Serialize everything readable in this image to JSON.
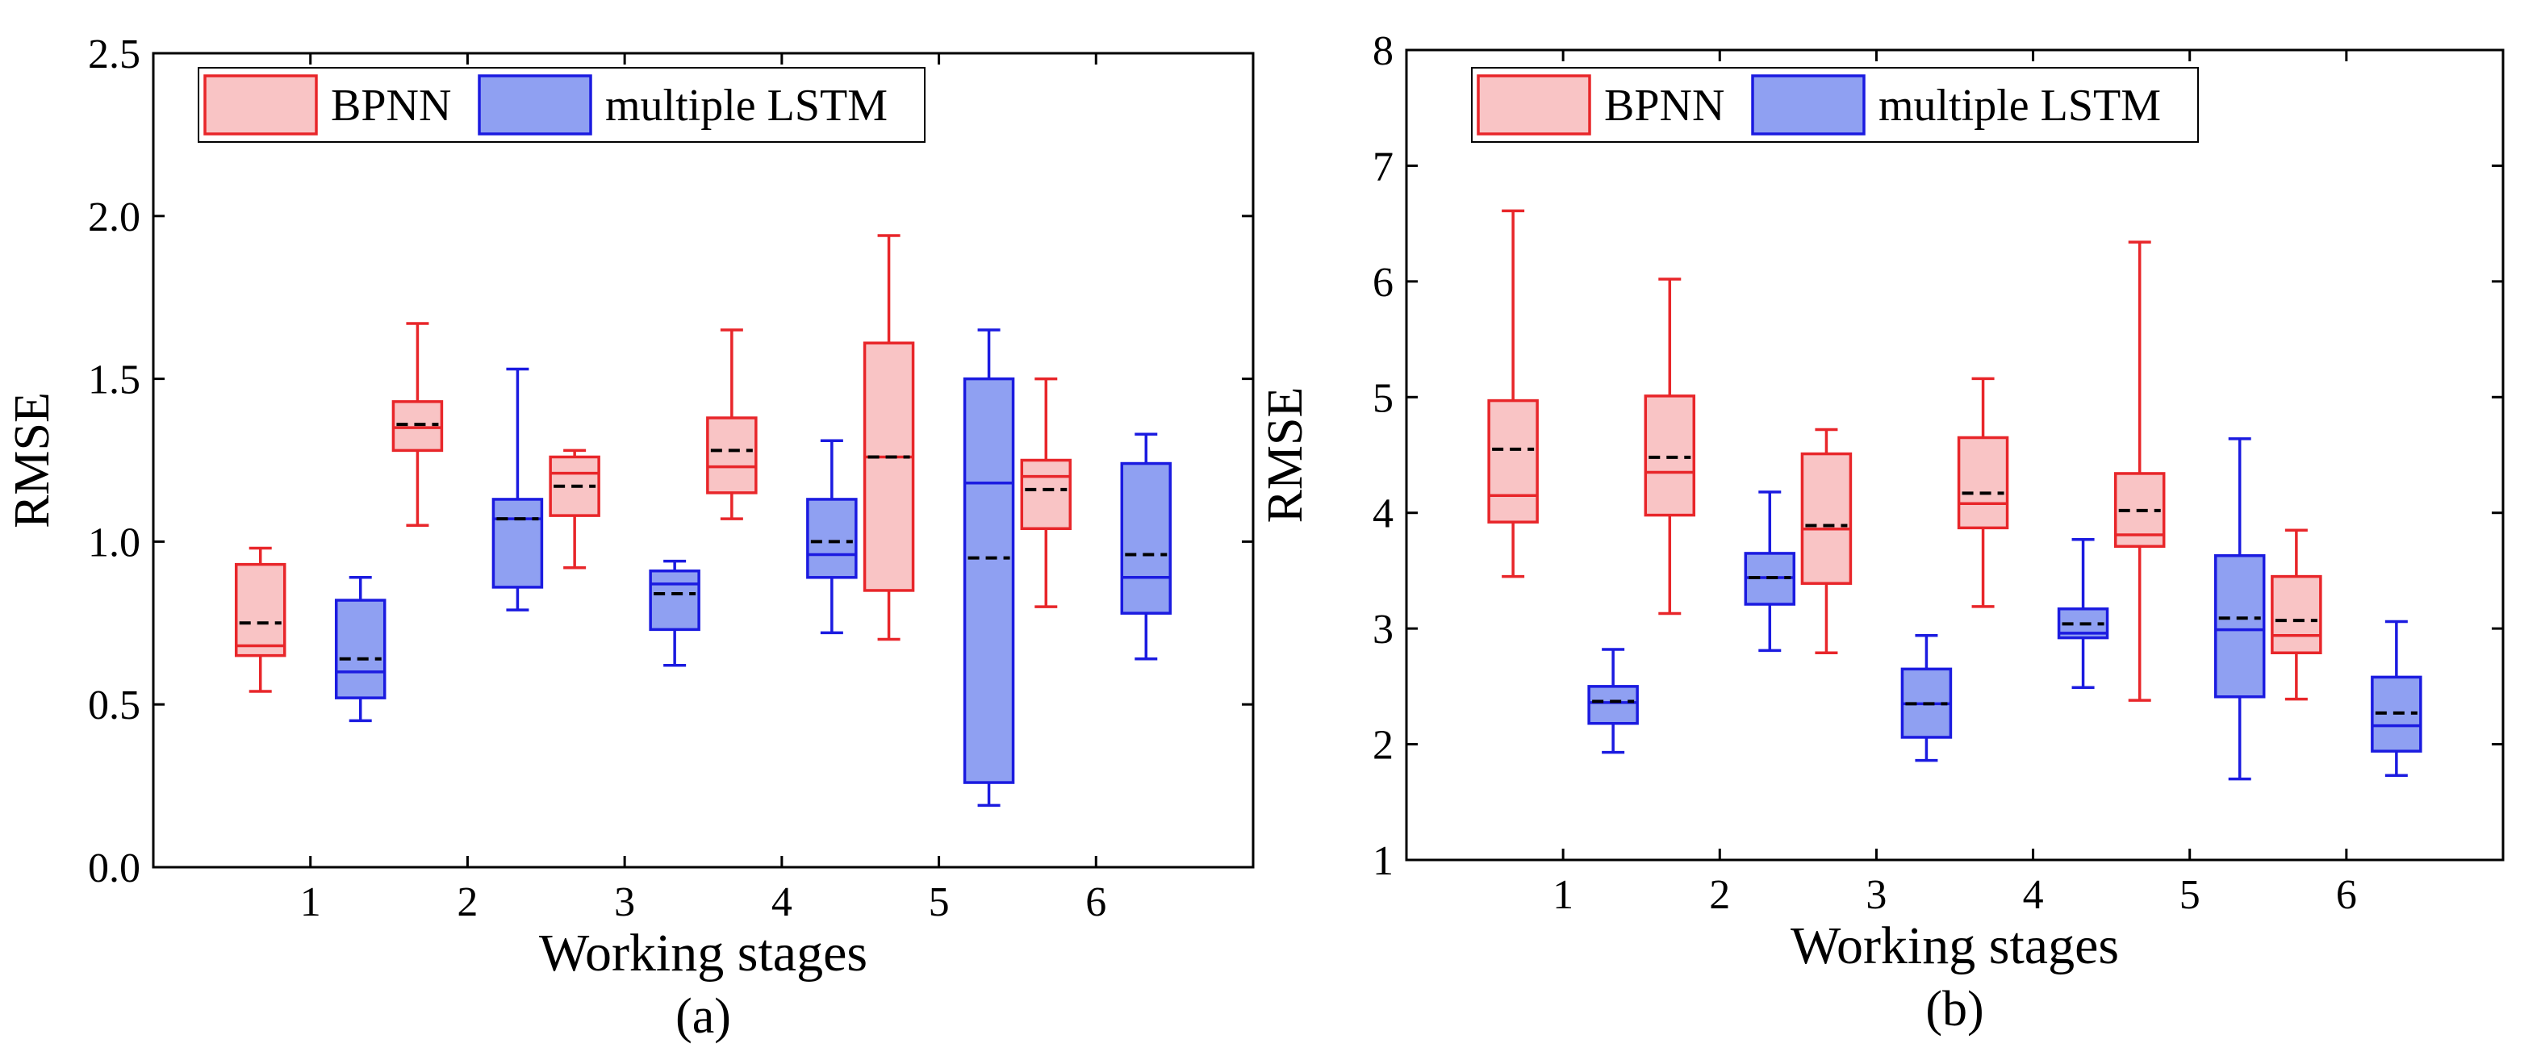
{
  "chart_data": [
    {
      "id": "a",
      "type": "box",
      "caption": "(a)",
      "xlabel": "Working stages",
      "ylabel": "RMSE",
      "categories": [
        "1",
        "2",
        "3",
        "4",
        "5",
        "6"
      ],
      "ylim": [
        0,
        2.5
      ],
      "yticks": [
        "0.0",
        "0.5",
        "1.0",
        "1.5",
        "2.0",
        "2.5"
      ],
      "legend": {
        "position": "top-left",
        "entries": [
          "BPNN",
          "multiple LSTM"
        ]
      },
      "series": [
        {
          "name": "BPNN",
          "color": "#e8262a",
          "fill": "#f9c4c5",
          "boxes": [
            {
              "min": 0.54,
              "q1": 0.65,
              "median": 0.68,
              "mean": 0.75,
              "q3": 0.93,
              "max": 0.98
            },
            {
              "min": 1.05,
              "q1": 1.28,
              "median": 1.35,
              "mean": 1.36,
              "q3": 1.43,
              "max": 1.67
            },
            {
              "min": 0.92,
              "q1": 1.08,
              "median": 1.21,
              "mean": 1.17,
              "q3": 1.26,
              "max": 1.28
            },
            {
              "min": 1.07,
              "q1": 1.15,
              "median": 1.23,
              "mean": 1.28,
              "q3": 1.38,
              "max": 1.65
            },
            {
              "min": 0.7,
              "q1": 0.85,
              "median": 1.26,
              "mean": 1.26,
              "q3": 1.61,
              "max": 1.94
            },
            {
              "min": 0.8,
              "q1": 1.04,
              "median": 1.2,
              "mean": 1.16,
              "q3": 1.25,
              "max": 1.5
            }
          ]
        },
        {
          "name": "multiple LSTM",
          "color": "#1b1be0",
          "fill": "#8fa0f2",
          "boxes": [
            {
              "min": 0.45,
              "q1": 0.52,
              "median": 0.6,
              "mean": 0.64,
              "q3": 0.82,
              "max": 0.89
            },
            {
              "min": 0.79,
              "q1": 0.86,
              "median": 1.07,
              "mean": 1.07,
              "q3": 1.13,
              "max": 1.53
            },
            {
              "min": 0.62,
              "q1": 0.73,
              "median": 0.87,
              "mean": 0.84,
              "q3": 0.91,
              "max": 0.94
            },
            {
              "min": 0.72,
              "q1": 0.89,
              "median": 0.96,
              "mean": 1.0,
              "q3": 1.13,
              "max": 1.31
            },
            {
              "min": 0.19,
              "q1": 0.26,
              "median": 1.18,
              "mean": 0.95,
              "q3": 1.5,
              "max": 1.65
            },
            {
              "min": 0.64,
              "q1": 0.78,
              "median": 0.89,
              "mean": 0.96,
              "q3": 1.24,
              "max": 1.33
            }
          ]
        }
      ]
    },
    {
      "id": "b",
      "type": "box",
      "caption": "(b)",
      "xlabel": "Working stages",
      "ylabel": "RMSE",
      "categories": [
        "1",
        "2",
        "3",
        "4",
        "5",
        "6"
      ],
      "ylim": [
        1,
        8
      ],
      "yticks": [
        "1",
        "2",
        "3",
        "4",
        "5",
        "6",
        "7",
        "8"
      ],
      "legend": {
        "position": "top-left",
        "entries": [
          "BPNN",
          "multiple LSTM"
        ]
      },
      "series": [
        {
          "name": "BPNN",
          "color": "#e8262a",
          "fill": "#f9c4c5",
          "boxes": [
            {
              "min": 3.45,
              "q1": 3.92,
              "median": 4.15,
              "mean": 4.55,
              "q3": 4.97,
              "max": 6.61
            },
            {
              "min": 3.13,
              "q1": 3.98,
              "median": 4.35,
              "mean": 4.48,
              "q3": 5.01,
              "max": 6.02
            },
            {
              "min": 2.79,
              "q1": 3.39,
              "median": 3.86,
              "mean": 3.89,
              "q3": 4.51,
              "max": 4.72
            },
            {
              "min": 3.19,
              "q1": 3.87,
              "median": 4.08,
              "mean": 4.17,
              "q3": 4.65,
              "max": 5.16
            },
            {
              "min": 2.38,
              "q1": 3.71,
              "median": 3.81,
              "mean": 4.02,
              "q3": 4.34,
              "max": 6.34
            },
            {
              "min": 2.39,
              "q1": 2.79,
              "median": 2.94,
              "mean": 3.07,
              "q3": 3.45,
              "max": 3.85
            }
          ]
        },
        {
          "name": "multiple LSTM",
          "color": "#1b1be0",
          "fill": "#8fa0f2",
          "boxes": [
            {
              "min": 1.93,
              "q1": 2.18,
              "median": 2.36,
              "mean": 2.37,
              "q3": 2.5,
              "max": 2.82
            },
            {
              "min": 2.81,
              "q1": 3.21,
              "median": 3.44,
              "mean": 3.44,
              "q3": 3.65,
              "max": 4.18
            },
            {
              "min": 1.86,
              "q1": 2.06,
              "median": 2.35,
              "mean": 2.35,
              "q3": 2.65,
              "max": 2.94
            },
            {
              "min": 2.49,
              "q1": 2.92,
              "median": 2.96,
              "mean": 3.04,
              "q3": 3.17,
              "max": 3.77
            },
            {
              "min": 1.7,
              "q1": 2.41,
              "median": 2.99,
              "mean": 3.09,
              "q3": 3.63,
              "max": 4.64
            },
            {
              "min": 1.73,
              "q1": 1.94,
              "median": 2.16,
              "mean": 2.27,
              "q3": 2.58,
              "max": 3.06
            }
          ]
        }
      ]
    }
  ]
}
